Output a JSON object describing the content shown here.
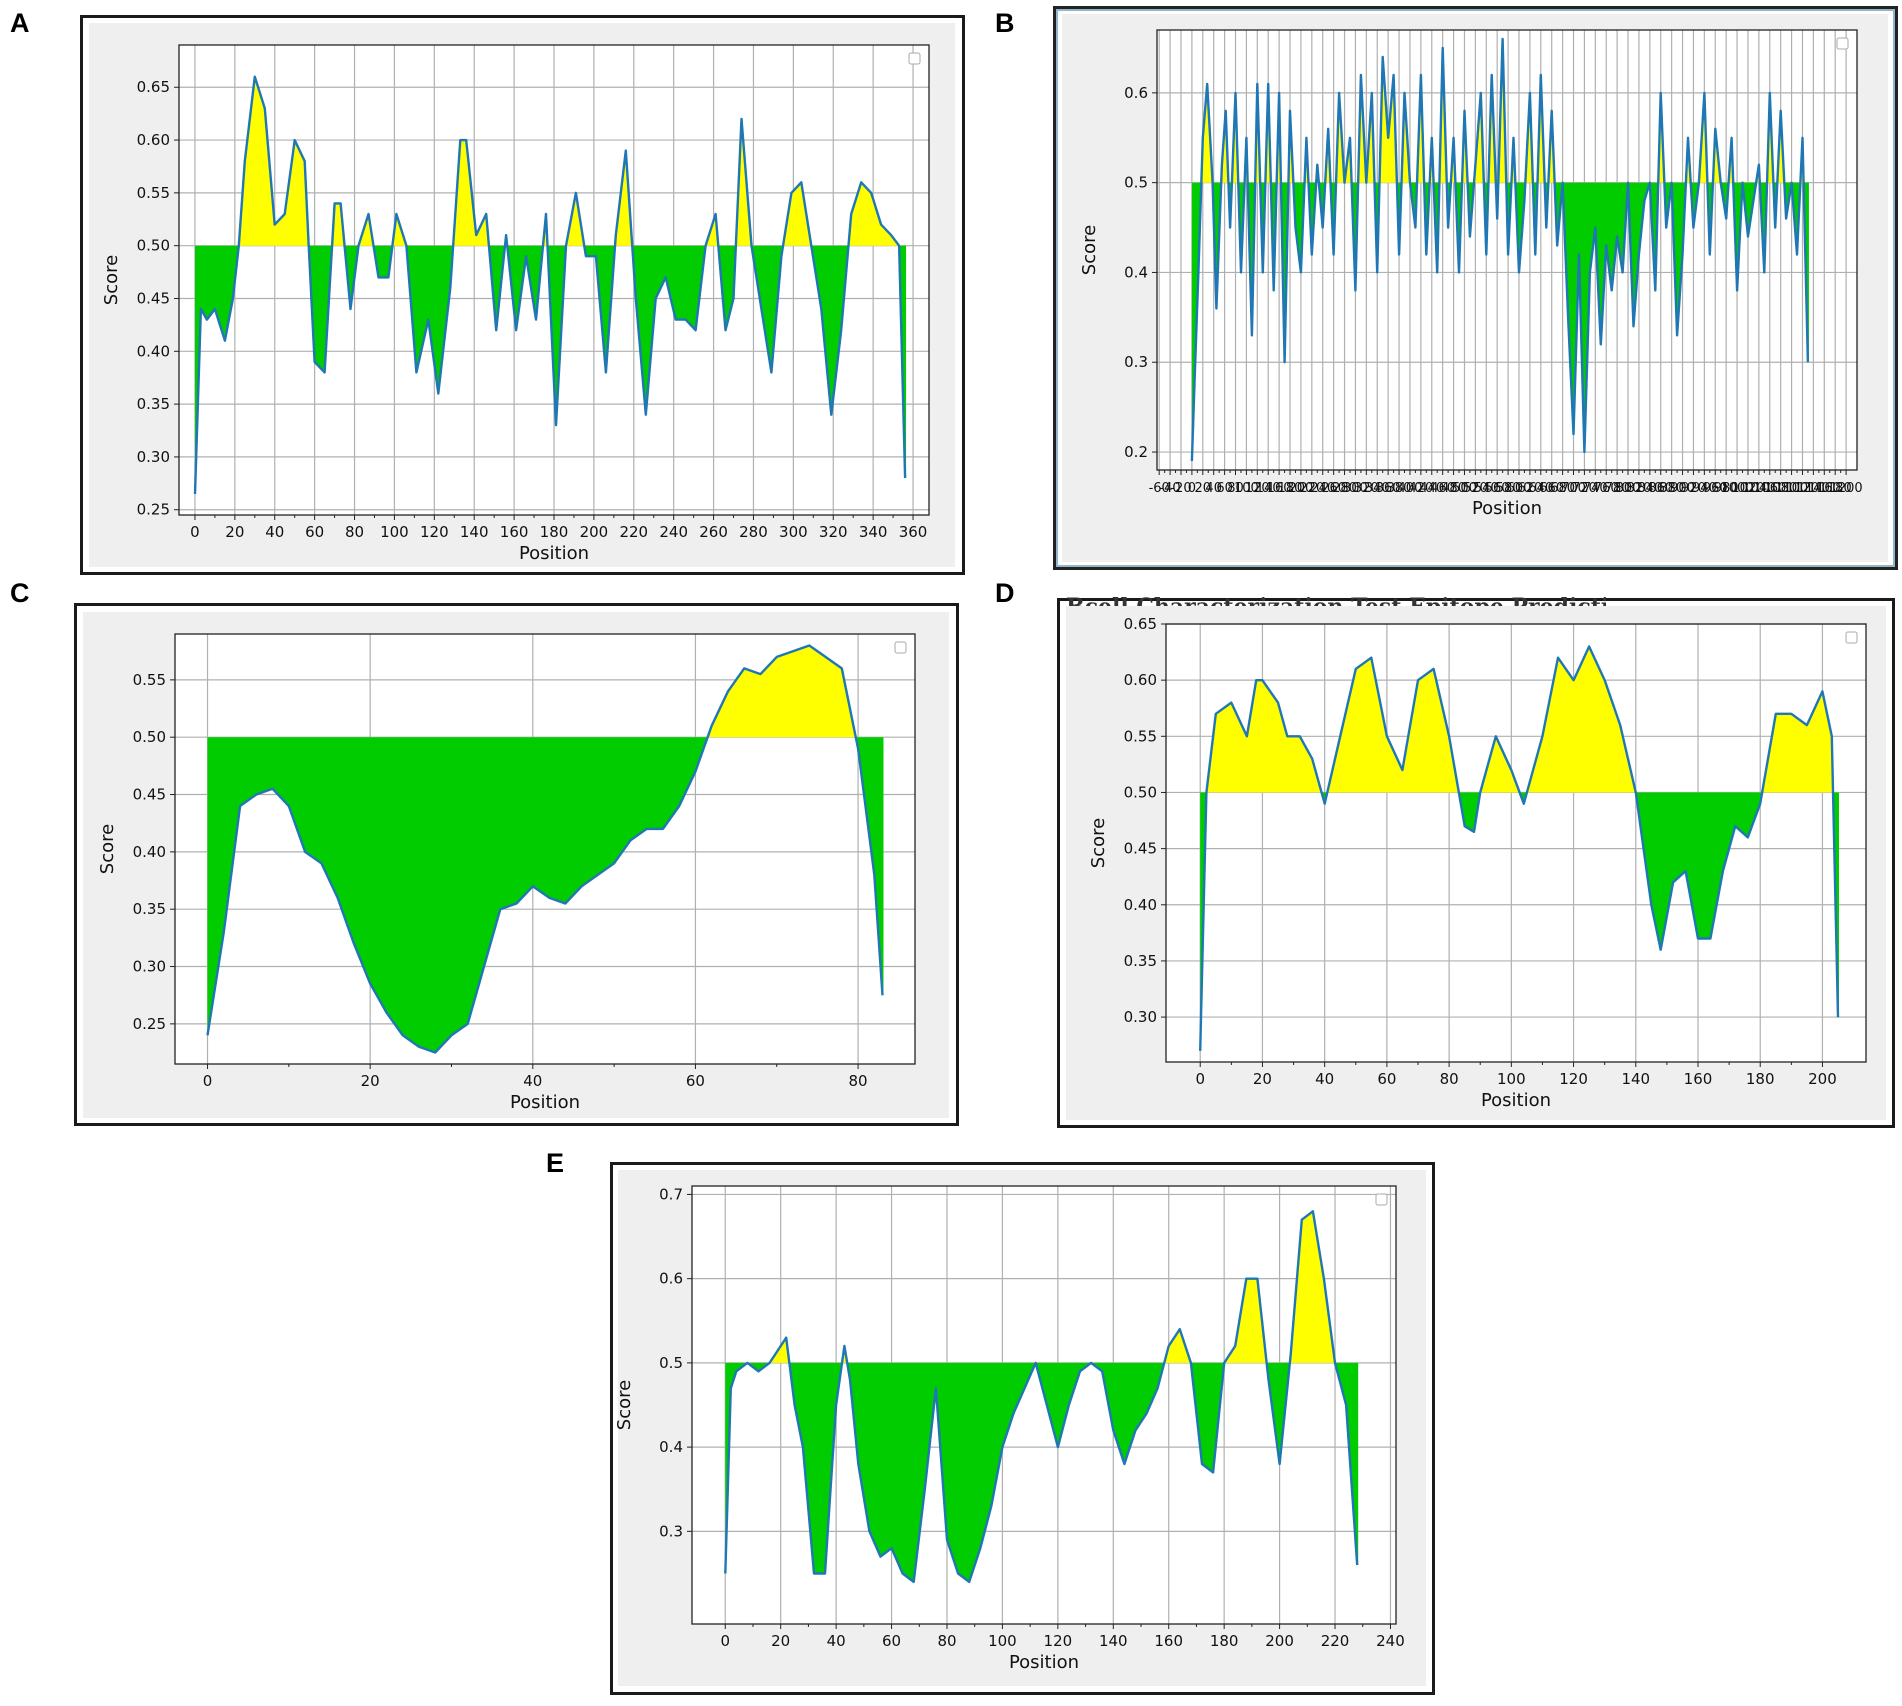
{
  "colors": {
    "line": "#1f77b4",
    "above": "#ffff00",
    "below": "#00cc00",
    "grid": "#b0b0b0"
  },
  "panels": [
    {
      "id": "A",
      "letter": "A",
      "xlabel": "Position",
      "ylabel": "Score"
    },
    {
      "id": "B",
      "letter": "B",
      "xlabel": "Position",
      "ylabel": "Score"
    },
    {
      "id": "C",
      "letter": "C",
      "xlabel": "Position",
      "ylabel": "Score"
    },
    {
      "id": "D",
      "letter": "D",
      "xlabel": "Position",
      "ylabel": "Score",
      "cut_title": "Bcell Characterization Test Epitope Prediction"
    },
    {
      "id": "E",
      "letter": "E",
      "xlabel": "Position",
      "ylabel": "Score"
    }
  ],
  "chart_data": [
    {
      "panel": "A",
      "type": "area",
      "xlabel": "Position",
      "ylabel": "Score",
      "threshold": 0.5,
      "xlim": [
        -8,
        368
      ],
      "ylim": [
        0.245,
        0.69
      ],
      "grid": true,
      "legend": "top-right (empty)",
      "xticks": [
        0,
        20,
        40,
        60,
        80,
        100,
        120,
        140,
        160,
        180,
        200,
        220,
        240,
        260,
        280,
        300,
        320,
        340,
        360
      ],
      "yticks": [
        0.25,
        0.3,
        0.35,
        0.4,
        0.45,
        0.5,
        0.55,
        0.6,
        0.65
      ],
      "ytick_labels": [
        "0.25",
        "0.30",
        "0.35",
        "0.40",
        "0.45",
        "0.50",
        "0.55",
        "0.60",
        "0.65"
      ],
      "x": [
        0,
        3,
        6,
        10,
        15,
        19,
        22,
        25,
        30,
        35,
        40,
        45,
        50,
        55,
        57,
        60,
        65,
        70,
        73,
        78,
        82,
        87,
        92,
        97,
        101,
        106,
        111,
        117,
        122,
        128,
        133,
        136,
        141,
        146,
        151,
        156,
        161,
        166,
        171,
        176,
        181,
        186,
        191,
        196,
        201,
        206,
        211,
        216,
        221,
        226,
        231,
        236,
        241,
        246,
        251,
        256,
        261,
        266,
        270,
        274,
        279,
        284,
        289,
        294,
        299,
        304,
        309,
        314,
        319,
        324,
        329,
        334,
        339,
        344,
        349,
        353,
        356
      ],
      "y": [
        0.265,
        0.44,
        0.43,
        0.44,
        0.41,
        0.45,
        0.5,
        0.58,
        0.66,
        0.63,
        0.52,
        0.53,
        0.6,
        0.58,
        0.5,
        0.39,
        0.38,
        0.54,
        0.54,
        0.44,
        0.5,
        0.53,
        0.47,
        0.47,
        0.53,
        0.5,
        0.38,
        0.43,
        0.36,
        0.46,
        0.6,
        0.6,
        0.51,
        0.53,
        0.42,
        0.51,
        0.42,
        0.49,
        0.43,
        0.53,
        0.33,
        0.5,
        0.55,
        0.49,
        0.49,
        0.38,
        0.51,
        0.59,
        0.45,
        0.34,
        0.45,
        0.47,
        0.43,
        0.43,
        0.42,
        0.5,
        0.53,
        0.42,
        0.45,
        0.62,
        0.5,
        0.44,
        0.38,
        0.49,
        0.55,
        0.56,
        0.5,
        0.44,
        0.34,
        0.42,
        0.53,
        0.56,
        0.55,
        0.52,
        0.51,
        0.5,
        0.28
      ]
    },
    {
      "panel": "B",
      "type": "area",
      "xlabel": "Position",
      "ylabel": "Score",
      "threshold": 0.5,
      "xlim": [
        -64,
        1220
      ],
      "ylim": [
        0.18,
        0.67
      ],
      "grid": true,
      "legend": "top-right (empty)",
      "xticks": [
        -60,
        -40,
        -20,
        0,
        20,
        40,
        60,
        80,
        100,
        120,
        140,
        160,
        180,
        200,
        220,
        240,
        260,
        280,
        300,
        320,
        340,
        360,
        380,
        400,
        420,
        440,
        460,
        480,
        500,
        520,
        540,
        560,
        580,
        600,
        620,
        640,
        660,
        680,
        700,
        720,
        740,
        760,
        780,
        800,
        820,
        840,
        860,
        880,
        900,
        920,
        940,
        960,
        980,
        1000,
        1020,
        1040,
        1060,
        1080,
        1100,
        1120,
        1140,
        1160,
        1180,
        1200
      ],
      "yticks": [
        0.2,
        0.3,
        0.4,
        0.5,
        0.6
      ],
      "ytick_labels": [
        "0.2",
        "0.3",
        "0.4",
        "0.5",
        "0.6"
      ],
      "x": [
        0,
        5,
        12,
        20,
        28,
        38,
        45,
        55,
        62,
        70,
        80,
        90,
        100,
        110,
        120,
        130,
        140,
        150,
        160,
        170,
        180,
        190,
        200,
        210,
        220,
        230,
        240,
        250,
        260,
        270,
        280,
        290,
        300,
        310,
        320,
        330,
        340,
        350,
        360,
        370,
        380,
        390,
        400,
        410,
        420,
        430,
        440,
        450,
        460,
        470,
        480,
        490,
        500,
        510,
        520,
        530,
        540,
        550,
        560,
        570,
        580,
        590,
        600,
        610,
        620,
        630,
        640,
        650,
        660,
        670,
        680,
        690,
        700,
        710,
        720,
        730,
        740,
        750,
        760,
        770,
        780,
        790,
        800,
        810,
        820,
        830,
        840,
        850,
        860,
        870,
        880,
        890,
        900,
        910,
        920,
        930,
        940,
        950,
        960,
        970,
        980,
        990,
        1000,
        1010,
        1020,
        1030,
        1040,
        1050,
        1060,
        1070,
        1080,
        1090,
        1100,
        1110,
        1120,
        1130
      ],
      "y": [
        0.19,
        0.28,
        0.4,
        0.55,
        0.61,
        0.5,
        0.36,
        0.52,
        0.58,
        0.45,
        0.6,
        0.4,
        0.55,
        0.33,
        0.61,
        0.4,
        0.61,
        0.38,
        0.6,
        0.3,
        0.58,
        0.45,
        0.4,
        0.55,
        0.42,
        0.52,
        0.45,
        0.56,
        0.42,
        0.6,
        0.5,
        0.55,
        0.38,
        0.62,
        0.5,
        0.6,
        0.4,
        0.64,
        0.55,
        0.62,
        0.42,
        0.6,
        0.5,
        0.45,
        0.62,
        0.42,
        0.55,
        0.4,
        0.65,
        0.45,
        0.55,
        0.4,
        0.58,
        0.44,
        0.52,
        0.6,
        0.42,
        0.62,
        0.46,
        0.66,
        0.42,
        0.55,
        0.4,
        0.48,
        0.6,
        0.42,
        0.62,
        0.45,
        0.58,
        0.43,
        0.5,
        0.35,
        0.22,
        0.42,
        0.2,
        0.4,
        0.45,
        0.32,
        0.43,
        0.38,
        0.44,
        0.4,
        0.5,
        0.34,
        0.42,
        0.48,
        0.5,
        0.38,
        0.6,
        0.45,
        0.5,
        0.33,
        0.42,
        0.55,
        0.45,
        0.5,
        0.6,
        0.42,
        0.56,
        0.5,
        0.46,
        0.55,
        0.38,
        0.5,
        0.44,
        0.48,
        0.52,
        0.4,
        0.6,
        0.45,
        0.58,
        0.46,
        0.5,
        0.42,
        0.55,
        0.3
      ]
    },
    {
      "panel": "C",
      "type": "area",
      "xlabel": "Position",
      "ylabel": "Score",
      "threshold": 0.5,
      "xlim": [
        -4,
        87
      ],
      "ylim": [
        0.215,
        0.59
      ],
      "grid": true,
      "legend": "top-right (empty)",
      "xticks": [
        0,
        20,
        40,
        60,
        80
      ],
      "yticks": [
        0.25,
        0.3,
        0.35,
        0.4,
        0.45,
        0.5,
        0.55
      ],
      "ytick_labels": [
        "0.25",
        "0.30",
        "0.35",
        "0.40",
        "0.45",
        "0.50",
        "0.55"
      ],
      "x": [
        0,
        2,
        4,
        6,
        8,
        10,
        12,
        14,
        16,
        18,
        20,
        22,
        24,
        26,
        28,
        30,
        32,
        34,
        36,
        38,
        40,
        42,
        44,
        46,
        48,
        50,
        52,
        54,
        56,
        58,
        60,
        62,
        64,
        66,
        68,
        70,
        72,
        74,
        76,
        78,
        80,
        82,
        83
      ],
      "y": [
        0.24,
        0.33,
        0.44,
        0.45,
        0.455,
        0.44,
        0.4,
        0.39,
        0.36,
        0.32,
        0.285,
        0.26,
        0.24,
        0.23,
        0.225,
        0.24,
        0.25,
        0.3,
        0.35,
        0.355,
        0.37,
        0.36,
        0.355,
        0.37,
        0.38,
        0.39,
        0.41,
        0.42,
        0.42,
        0.44,
        0.47,
        0.51,
        0.54,
        0.56,
        0.555,
        0.57,
        0.575,
        0.58,
        0.57,
        0.56,
        0.49,
        0.38,
        0.275
      ]
    },
    {
      "panel": "D",
      "type": "area",
      "xlabel": "Position",
      "ylabel": "Score",
      "threshold": 0.5,
      "xlim": [
        -11,
        214
      ],
      "ylim": [
        0.26,
        0.65
      ],
      "grid": true,
      "legend": "top-right (empty)",
      "xticks": [
        0,
        20,
        40,
        60,
        80,
        100,
        120,
        140,
        160,
        180,
        200
      ],
      "yticks": [
        0.3,
        0.35,
        0.4,
        0.45,
        0.5,
        0.55,
        0.6,
        0.65
      ],
      "ytick_labels": [
        "0.30",
        "0.35",
        "0.40",
        "0.45",
        "0.50",
        "0.55",
        "0.60",
        "0.65"
      ],
      "x": [
        0,
        2,
        5,
        10,
        15,
        18,
        20,
        25,
        28,
        32,
        36,
        40,
        45,
        50,
        55,
        60,
        65,
        70,
        75,
        80,
        85,
        88,
        90,
        95,
        100,
        104,
        110,
        115,
        120,
        125,
        130,
        135,
        140,
        145,
        148,
        152,
        156,
        160,
        164,
        168,
        172,
        176,
        180,
        185,
        190,
        195,
        200,
        203,
        205
      ],
      "y": [
        0.27,
        0.5,
        0.57,
        0.58,
        0.55,
        0.6,
        0.6,
        0.58,
        0.55,
        0.55,
        0.53,
        0.49,
        0.55,
        0.61,
        0.62,
        0.55,
        0.52,
        0.6,
        0.61,
        0.55,
        0.47,
        0.465,
        0.5,
        0.55,
        0.52,
        0.49,
        0.55,
        0.62,
        0.6,
        0.63,
        0.6,
        0.56,
        0.5,
        0.4,
        0.36,
        0.42,
        0.43,
        0.37,
        0.37,
        0.43,
        0.47,
        0.46,
        0.49,
        0.57,
        0.57,
        0.56,
        0.59,
        0.55,
        0.3
      ]
    },
    {
      "panel": "E",
      "type": "area",
      "xlabel": "Position",
      "ylabel": "Score",
      "threshold": 0.5,
      "xlim": [
        -12,
        242
      ],
      "ylim": [
        0.19,
        0.71
      ],
      "grid": true,
      "legend": "top-right (empty)",
      "xticks": [
        0,
        20,
        40,
        60,
        80,
        100,
        120,
        140,
        160,
        180,
        200,
        220,
        240
      ],
      "yticks": [
        0.3,
        0.4,
        0.5,
        0.6,
        0.7
      ],
      "ytick_labels": [
        "0.3",
        "0.4",
        "0.5",
        "0.6",
        "0.7"
      ],
      "x": [
        0,
        2,
        4,
        8,
        12,
        16,
        20,
        22,
        25,
        28,
        32,
        36,
        40,
        43,
        45,
        48,
        52,
        56,
        60,
        64,
        68,
        72,
        76,
        80,
        84,
        88,
        92,
        96,
        100,
        104,
        108,
        112,
        116,
        120,
        124,
        128,
        132,
        136,
        140,
        144,
        148,
        152,
        156,
        160,
        164,
        168,
        172,
        176,
        180,
        184,
        188,
        192,
        196,
        200,
        204,
        208,
        212,
        216,
        220,
        224,
        228
      ],
      "y": [
        0.25,
        0.47,
        0.49,
        0.5,
        0.49,
        0.5,
        0.52,
        0.53,
        0.45,
        0.4,
        0.25,
        0.25,
        0.45,
        0.52,
        0.48,
        0.38,
        0.3,
        0.27,
        0.28,
        0.25,
        0.24,
        0.35,
        0.47,
        0.29,
        0.25,
        0.24,
        0.28,
        0.33,
        0.4,
        0.44,
        0.47,
        0.5,
        0.45,
        0.4,
        0.45,
        0.49,
        0.5,
        0.49,
        0.42,
        0.38,
        0.42,
        0.44,
        0.47,
        0.52,
        0.54,
        0.5,
        0.38,
        0.37,
        0.5,
        0.52,
        0.6,
        0.6,
        0.48,
        0.38,
        0.51,
        0.67,
        0.68,
        0.6,
        0.5,
        0.45,
        0.26
      ]
    }
  ]
}
